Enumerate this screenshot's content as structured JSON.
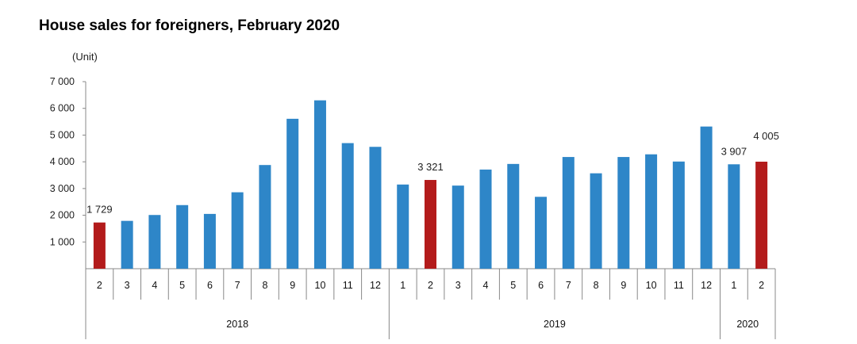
{
  "chart_data": {
    "type": "bar",
    "title": "House sales for foreigners, February 2020",
    "ylabel": "(Unit)",
    "xlabel": "",
    "ylim": [
      0,
      7000
    ],
    "yticks": [
      {
        "value": 1000,
        "label": "1 000"
      },
      {
        "value": 2000,
        "label": "2 000"
      },
      {
        "value": 3000,
        "label": "3 000"
      },
      {
        "value": 4000,
        "label": "4 000"
      },
      {
        "value": 5000,
        "label": "5 000"
      },
      {
        "value": 6000,
        "label": "6 000"
      },
      {
        "value": 7000,
        "label": "7 000"
      }
    ],
    "categories": [
      "2",
      "3",
      "4",
      "5",
      "6",
      "7",
      "8",
      "9",
      "10",
      "11",
      "12",
      "1",
      "2",
      "3",
      "4",
      "5",
      "6",
      "7",
      "8",
      "9",
      "10",
      "11",
      "12",
      "1",
      "2"
    ],
    "values": [
      1729,
      1790,
      2010,
      2380,
      2050,
      2860,
      3880,
      5610,
      6300,
      4700,
      4560,
      3150,
      3321,
      3110,
      3710,
      3920,
      2690,
      4180,
      3570,
      4180,
      4280,
      4010,
      5320,
      3907,
      4005
    ],
    "highlight": [
      true,
      false,
      false,
      false,
      false,
      false,
      false,
      false,
      false,
      false,
      false,
      false,
      true,
      false,
      false,
      false,
      false,
      false,
      false,
      false,
      false,
      false,
      false,
      false,
      true
    ],
    "data_labels": [
      {
        "index": 0,
        "text": "1 729"
      },
      {
        "index": 12,
        "text": "3 321"
      },
      {
        "index": 23,
        "text": "3 907"
      },
      {
        "index": 24,
        "text": "4 005"
      }
    ],
    "year_groups": [
      {
        "label": "2018",
        "start": 0,
        "count": 11
      },
      {
        "label": "2019",
        "start": 11,
        "count": 12
      },
      {
        "label": "2020",
        "start": 23,
        "count": 2
      }
    ],
    "colors": {
      "bar": "#2e86c8",
      "highlight": "#b31b1b",
      "axis": "#888888"
    },
    "grid": false,
    "legend": "none"
  }
}
